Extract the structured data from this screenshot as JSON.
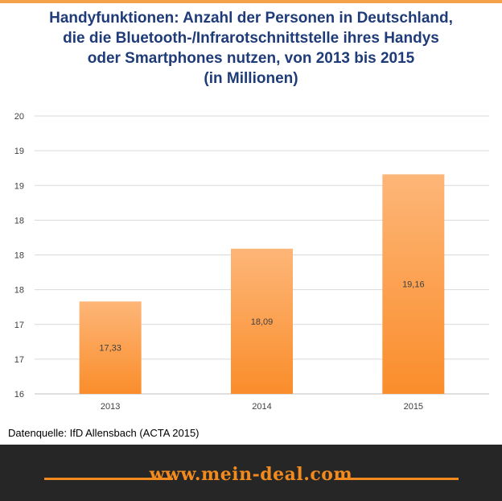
{
  "chart_data": {
    "type": "bar",
    "title": [
      "Handyfunktionen:  Anzahl der Personen in Deutschland,",
      "die die Bluetooth-/Infrarotschnittstelle  ihres Handys",
      "oder Smartphones  nutzen, von 2013 bis 2015",
      "(in Millionen)"
    ],
    "categories": [
      "2013",
      "2014",
      "2015"
    ],
    "values": [
      17.33,
      18.09,
      19.16
    ],
    "value_labels": [
      "17,33",
      "18,09",
      "19,16"
    ],
    "ylim": [
      16,
      20
    ],
    "y_ticks": [
      16,
      16.5,
      17,
      17.5,
      18,
      18.5,
      19,
      19.5,
      20
    ],
    "y_tick_labels": [
      "16",
      "17",
      "17",
      "18",
      "18",
      "18",
      "19",
      "19",
      "20"
    ],
    "grid": true,
    "legend": "none",
    "bar_color_top": "#fdb678",
    "bar_color_bottom": "#fa8d2b"
  },
  "source": "Datenquelle: IfD Allensbach (ACTA 2015)",
  "footer": {
    "site": "www.mein-deal.com",
    "accent": "#f28a1e"
  }
}
